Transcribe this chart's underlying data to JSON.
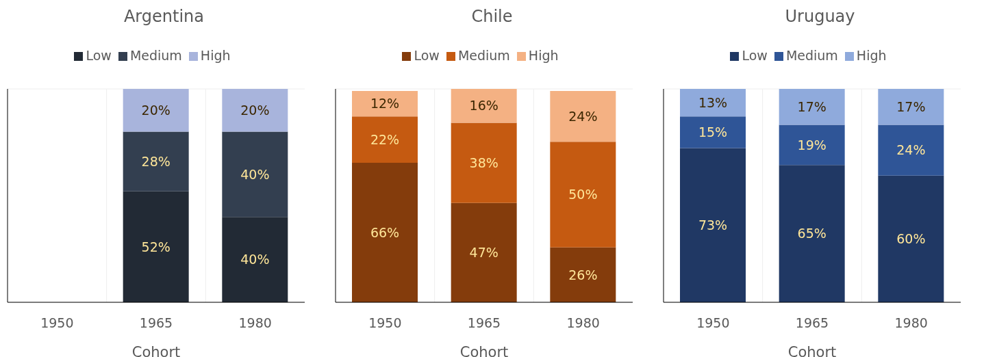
{
  "chart_data": [
    {
      "type": "bar",
      "title": "Argentina",
      "xlabel": "Cohort",
      "categories": [
        "1950",
        "1965",
        "1980"
      ],
      "stacked": true,
      "tick_labels": "x",
      "grid": true,
      "legend": "top",
      "series": [
        {
          "name": "Low",
          "color": "#222a35",
          "values": [
            null,
            52,
            40
          ],
          "value_labels": [
            null,
            "52%",
            "40%"
          ]
        },
        {
          "name": "Medium",
          "color": "#333f50",
          "values": [
            null,
            28,
            40
          ],
          "value_labels": [
            null,
            "28%",
            "40%"
          ]
        },
        {
          "name": "High",
          "color": "#a8b4dc",
          "values": [
            null,
            20,
            20
          ],
          "value_labels": [
            null,
            "20%",
            "20%"
          ]
        }
      ]
    },
    {
      "type": "bar",
      "title": "Chile",
      "xlabel": "Cohort",
      "categories": [
        "1950",
        "1965",
        "1980"
      ],
      "stacked": true,
      "tick_labels": "x",
      "grid": true,
      "legend": "top",
      "series": [
        {
          "name": "Low",
          "color": "#843c0c",
          "values": [
            66,
            47,
            26
          ],
          "value_labels": [
            "66%",
            "47%",
            "26%"
          ]
        },
        {
          "name": "Medium",
          "color": "#c55a11",
          "values": [
            22,
            38,
            50
          ],
          "value_labels": [
            "22%",
            "38%",
            "50%"
          ]
        },
        {
          "name": "High",
          "color": "#f4b183",
          "values": [
            12,
            16,
            24
          ],
          "value_labels": [
            "12%",
            "16%",
            "24%"
          ]
        }
      ]
    },
    {
      "type": "bar",
      "title": "Uruguay",
      "xlabel": "Cohort",
      "categories": [
        "1950",
        "1965",
        "1980"
      ],
      "stacked": true,
      "tick_labels": "x",
      "grid": true,
      "legend": "top",
      "series": [
        {
          "name": "Low",
          "color": "#203864",
          "values": [
            73,
            65,
            60
          ],
          "value_labels": [
            "73%",
            "65%",
            "60%"
          ]
        },
        {
          "name": "Medium",
          "color": "#2f5597",
          "values": [
            15,
            19,
            24
          ],
          "value_labels": [
            "15%",
            "19%",
            "24%"
          ]
        },
        {
          "name": "High",
          "color": "#8faadc",
          "values": [
            13,
            17,
            17
          ],
          "value_labels": [
            "13%",
            "17%",
            "17%"
          ]
        }
      ]
    }
  ]
}
